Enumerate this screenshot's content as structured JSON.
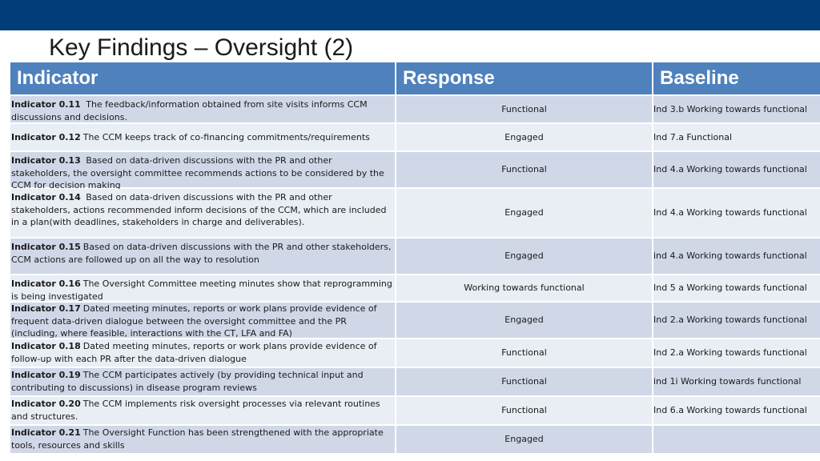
{
  "title": "Key Findings – Oversight (2)",
  "table": {
    "headers": {
      "indicator": "Indicator",
      "response": "Response",
      "baseline": "Baseline"
    },
    "rows": [
      {
        "id": "Indicator 0.11",
        "text": " The feedback/information obtained from site visits informs CCM discussions and decisions.",
        "response": "Functional",
        "baseline": "Ind 3.b Working towards functional"
      },
      {
        "id": "Indicator 0.12",
        "text": "The CCM keeps track of co-financing commitments/requirements",
        "response": "Engaged",
        "baseline": "Ind 7.a Functional"
      },
      {
        "id": "Indicator 0.13",
        "text": " Based on data-driven discussions with the PR and other stakeholders,  the oversight committee recommends actions to be considered by the CCM for decision making",
        "response": "Functional",
        "baseline": "Ind 4.a Working towards functional"
      },
      {
        "id": "Indicator 0.14",
        "text": " Based on data-driven discussions with the PR and other stakeholders, actions recommended inform decisions of the CCM, which are included in a plan(with deadlines, stakeholders in charge and deliverables).",
        "response": "Engaged",
        "baseline": "Ind 4.a Working towards functional"
      },
      {
        "id": "Indicator 0.15",
        "text": "Based on data-driven discussions with the PR and other stakeholders, CCM actions are followed up on all the way to resolution",
        "response": "Engaged",
        "baseline": "ind 4.a Working towards functional"
      },
      {
        "id": "Indicator 0.16",
        "text": "The Oversight Committee meeting minutes show that reprogramming is being investigated",
        "response": "Working towards functional",
        "baseline": "Ind 5 a Working towards functional"
      },
      {
        "id": "Indicator 0.17",
        "text": "Dated meeting minutes, reports or work plans provide evidence of frequent data-driven dialogue  between the oversight committee and the PR  (including, where feasible, interactions with the CT, LFA and FA)",
        "response": "Engaged",
        "baseline": "Ind 2.a Working towards functional"
      },
      {
        "id": "Indicator 0.18",
        "text": "Dated meeting minutes, reports or work plans provide evidence of follow-up with each PR after the data-driven dialogue",
        "response": "Functional",
        "baseline": "Ind 2.a Working towards functional"
      },
      {
        "id": "Indicator 0.19",
        "text": "The CCM participates actively (by providing technical input and contributing to discussions) in disease program reviews",
        "response": "Functional",
        "baseline": "ind 1i Working towards functional"
      },
      {
        "id": "Indicator 0.20",
        "text": "The CCM implements risk oversight processes via relevant routines and structures.",
        "response": "Functional",
        "baseline": "Ind 6.a Working towards functional"
      },
      {
        "id": "Indicator 0.21",
        "text": "The Oversight Function has been strengthened with the appropriate tools, resources and skills",
        "response": "Engaged",
        "baseline": ""
      }
    ]
  }
}
